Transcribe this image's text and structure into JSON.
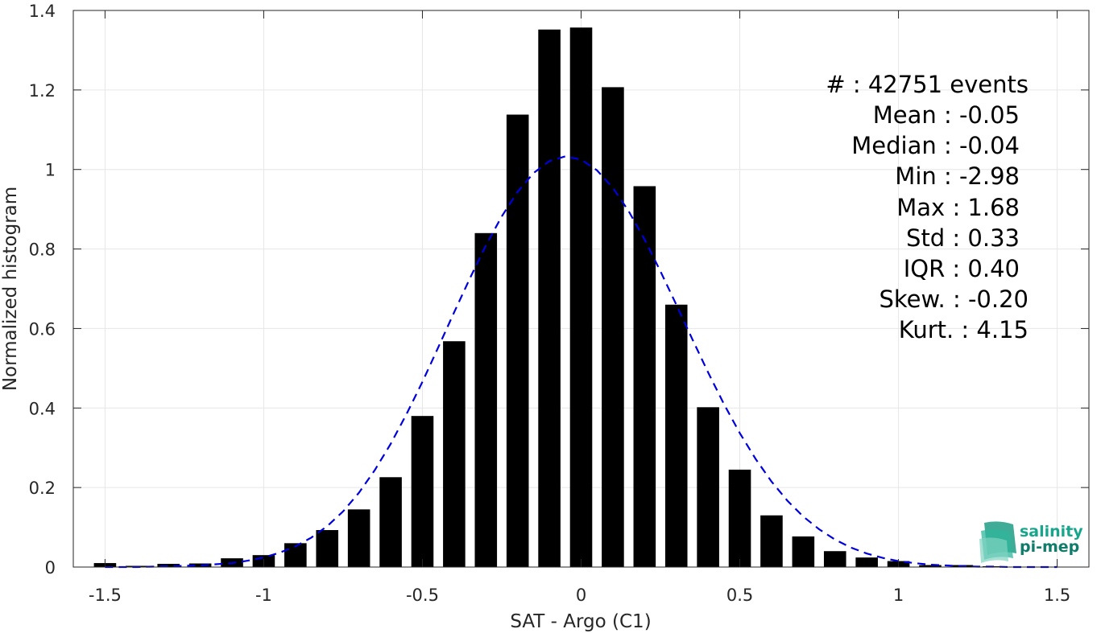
{
  "chart_data": {
    "type": "bar",
    "xlabel": "SAT - Argo (C1)",
    "ylabel": "Normalized histogram",
    "xlim": [
      -1.6,
      1.6
    ],
    "ylim": [
      0,
      1.4
    ],
    "xticks": [
      -1.5,
      -1,
      -0.5,
      0,
      0.5,
      1,
      1.5
    ],
    "xtick_labels": [
      "-1.5",
      "-1",
      "-0.5",
      "0",
      "0.5",
      "1",
      "1.5"
    ],
    "yticks": [
      0,
      0.2,
      0.4,
      0.6,
      0.8,
      1,
      1.2,
      1.4
    ],
    "ytick_labels": [
      "0",
      "0.2",
      "0.4",
      "0.6",
      "0.8",
      "1",
      "1.2",
      "1.4"
    ],
    "grid": true,
    "bar_width": 0.07,
    "x": [
      -1.5,
      -1.4,
      -1.3,
      -1.2,
      -1.1,
      -1.0,
      -0.9,
      -0.8,
      -0.7,
      -0.6,
      -0.5,
      -0.4,
      -0.3,
      -0.2,
      -0.1,
      0.0,
      0.1,
      0.2,
      0.3,
      0.4,
      0.5,
      0.6,
      0.7,
      0.8,
      0.9,
      1.0,
      1.1,
      1.2,
      1.3
    ],
    "values": [
      0.01,
      0.003,
      0.008,
      0.009,
      0.022,
      0.03,
      0.06,
      0.093,
      0.145,
      0.226,
      0.38,
      0.568,
      0.84,
      1.138,
      1.352,
      1.357,
      1.207,
      0.958,
      0.66,
      0.402,
      0.245,
      0.13,
      0.077,
      0.04,
      0.024,
      0.015,
      0.005,
      0.005,
      0.002
    ],
    "bar_color": "#000000",
    "fit_curve": {
      "style": "dashed",
      "color": "#0000dd",
      "x": [
        -1.5,
        -1.45,
        -1.4,
        -1.35,
        -1.3,
        -1.25,
        -1.2,
        -1.15,
        -1.1,
        -1.05,
        -1.0,
        -0.95,
        -0.9,
        -0.85,
        -0.8,
        -0.75,
        -0.7,
        -0.65,
        -0.6,
        -0.55,
        -0.5,
        -0.45,
        -0.4,
        -0.35,
        -0.3,
        -0.25,
        -0.2,
        -0.15,
        -0.1,
        -0.05,
        0.0,
        0.05,
        0.1,
        0.15,
        0.2,
        0.25,
        0.3,
        0.35,
        0.4,
        0.45,
        0.5,
        0.55,
        0.6,
        0.65,
        0.7,
        0.75,
        0.8,
        0.85,
        0.9,
        0.95,
        1.0,
        1.05,
        1.1,
        1.15,
        1.2,
        1.25,
        1.3,
        1.35,
        1.4,
        1.45,
        1.5
      ],
      "y": [
        0.0,
        0.0,
        0.0,
        0.001,
        0.002,
        0.003,
        0.004,
        0.007,
        0.01,
        0.016,
        0.024,
        0.036,
        0.052,
        0.074,
        0.103,
        0.14,
        0.187,
        0.244,
        0.31,
        0.385,
        0.466,
        0.553,
        0.641,
        0.727,
        0.809,
        0.882,
        0.944,
        0.991,
        1.021,
        1.033,
        1.025,
        0.998,
        0.954,
        0.895,
        0.824,
        0.744,
        0.66,
        0.574,
        0.49,
        0.41,
        0.337,
        0.272,
        0.215,
        0.167,
        0.127,
        0.095,
        0.069,
        0.049,
        0.034,
        0.023,
        0.015,
        0.01,
        0.006,
        0.004,
        0.002,
        0.001,
        0.001,
        0.0,
        0.0,
        0.0,
        0.0
      ]
    },
    "stats_lines": [
      "#  : 42751 events",
      "Mean : -0.05",
      "Median : -0.04",
      "Min : -2.98",
      "Max : 1.68",
      "Std : 0.33",
      "IQR : 0.40",
      "Skew. : -0.20",
      "Kurt. : 4.15"
    ]
  },
  "logo": {
    "line1": "salinity",
    "line2": "pi-mep",
    "color": "#17a58c"
  }
}
